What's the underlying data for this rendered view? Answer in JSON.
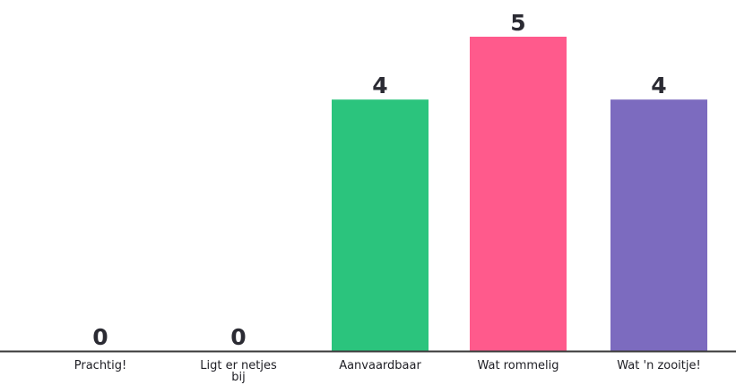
{
  "chart_data": {
    "type": "bar",
    "categories": [
      "Prachtig!",
      "Ligt er netjes bij",
      "Aanvaardbaar",
      "Wat rommelig",
      "Wat 'n zooitje!"
    ],
    "category_lines": [
      [
        "Prachtig!"
      ],
      [
        "Ligt er netjes",
        "bij"
      ],
      [
        "Aanvaardbaar"
      ],
      [
        "Wat rommelig"
      ],
      [
        "Wat 'n zooitje!"
      ]
    ],
    "values": [
      0,
      0,
      4,
      5,
      4
    ],
    "colors": [
      "#2bc47d",
      "#2bc47d",
      "#2bc47d",
      "#ff5a8c",
      "#7c6bbf"
    ],
    "ylim": [
      0,
      5
    ],
    "grid": false,
    "axis_color": "#3a3a3a",
    "title": "",
    "xlabel": "",
    "ylabel": ""
  }
}
